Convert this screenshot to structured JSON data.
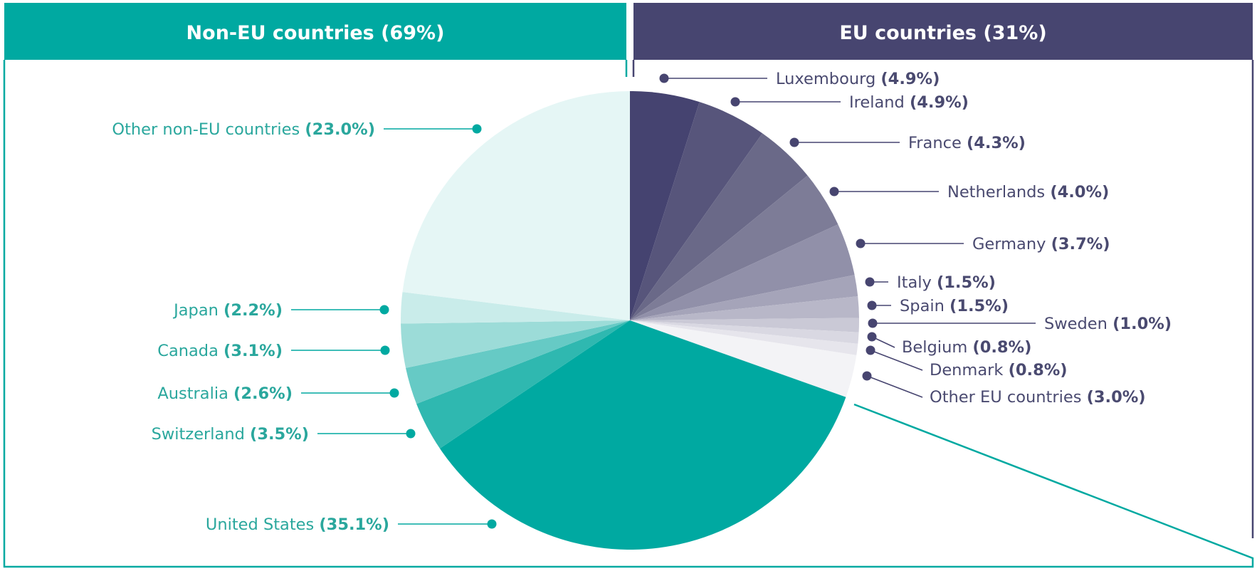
{
  "colors": {
    "teal": "#00a9a1",
    "teal_text": "#2aa79d",
    "navy": "#474570",
    "navy_text": "#4a4a70"
  },
  "headers": {
    "non_eu": "Non-EU countries (69%)",
    "eu": "EU countries (31%)"
  },
  "chart_data": {
    "type": "pie",
    "groups": [
      {
        "name": "Non-EU countries",
        "share": 69
      },
      {
        "name": "EU countries",
        "share": 31
      }
    ],
    "slices": [
      {
        "label": "Luxembourg",
        "value": 4.9,
        "pct_text": "(4.9%)",
        "group": "EU",
        "color": "#454370"
      },
      {
        "label": "Ireland",
        "value": 4.9,
        "pct_text": "(4.9%)",
        "group": "EU",
        "color": "#57557b"
      },
      {
        "label": "France",
        "value": 4.3,
        "pct_text": "(4.3%)",
        "group": "EU",
        "color": "#6a6988"
      },
      {
        "label": "Netherlands",
        "value": 4.0,
        "pct_text": "(4.0%)",
        "group": "EU",
        "color": "#7d7c97"
      },
      {
        "label": "Germany",
        "value": 3.7,
        "pct_text": "(3.7%)",
        "group": "EU",
        "color": "#9190a9"
      },
      {
        "label": "Italy",
        "value": 1.5,
        "pct_text": "(1.5%)",
        "group": "EU",
        "color": "#a5a4b9"
      },
      {
        "label": "Spain",
        "value": 1.5,
        "pct_text": "(1.5%)",
        "group": "EU",
        "color": "#b8b7c8"
      },
      {
        "label": "Sweden",
        "value": 1.0,
        "pct_text": "(1.0%)",
        "group": "EU",
        "color": "#cac9d6"
      },
      {
        "label": "Belgium",
        "value": 0.8,
        "pct_text": "(0.8%)",
        "group": "EU",
        "color": "#d9d8e2"
      },
      {
        "label": "Denmark",
        "value": 0.8,
        "pct_text": "(0.8%)",
        "group": "EU",
        "color": "#e6e5ec"
      },
      {
        "label": "Other EU countries",
        "value": 3.0,
        "pct_text": "(3.0%)",
        "group": "EU",
        "color": "#f3f3f6"
      },
      {
        "label": "United States",
        "value": 35.1,
        "pct_text": "(35.1%)",
        "group": "Non-EU",
        "color": "#00a9a1"
      },
      {
        "label": "Switzerland",
        "value": 3.5,
        "pct_text": "(3.5%)",
        "group": "Non-EU",
        "color": "#2fb8b0"
      },
      {
        "label": "Australia",
        "value": 2.6,
        "pct_text": "(2.6%)",
        "group": "Non-EU",
        "color": "#66cac5"
      },
      {
        "label": "Canada",
        "value": 3.1,
        "pct_text": "(3.1%)",
        "group": "Non-EU",
        "color": "#9cdcd8"
      },
      {
        "label": "Japan",
        "value": 2.2,
        "pct_text": "(2.2%)",
        "group": "Non-EU",
        "color": "#c9ecea"
      },
      {
        "label": "Other non-EU countries",
        "value": 23.0,
        "pct_text": "(23.0%)",
        "group": "Non-EU",
        "color": "#e5f6f5"
      }
    ]
  }
}
